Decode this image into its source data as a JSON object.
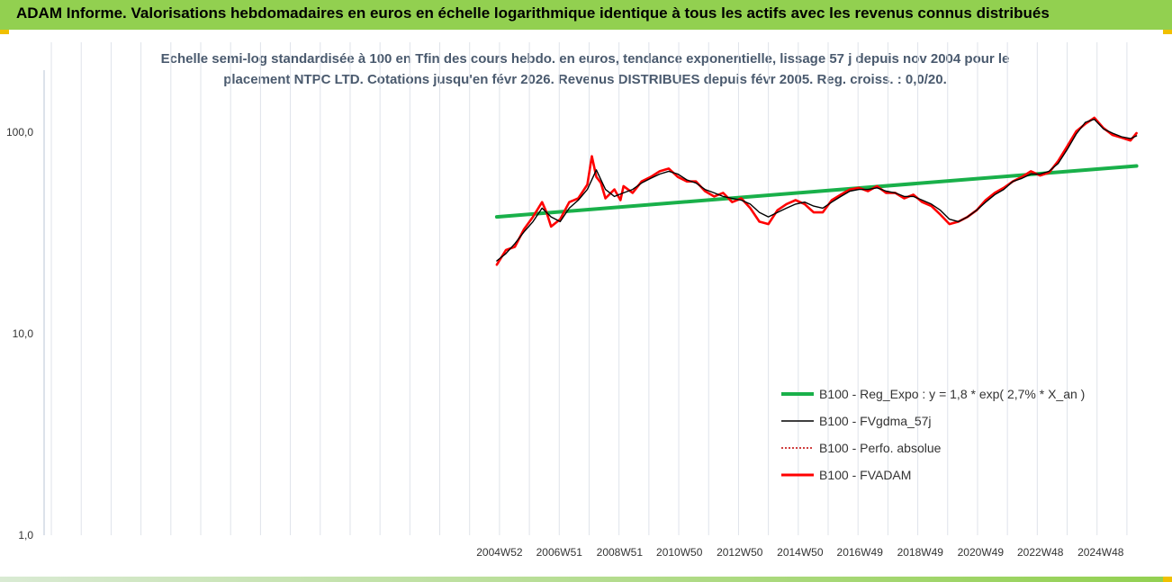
{
  "banner": {
    "title": "ADAM Informe. Valorisations hebdomadaires en euros en échelle logarithmique identique à tous les actifs avec les revenus connus distribués"
  },
  "colors": {
    "banner": "#92d050",
    "accent": "#f0c000",
    "series_reg": "#19b04a",
    "series_fvgdma": "#000000",
    "series_perfo": "#c00000",
    "series_fvadam": "#ff0000",
    "grid": "#dfe3ea"
  },
  "chart_data": {
    "type": "line",
    "title_lines": [
      "Echelle semi-log standardisée à 100 en Tfin des cours hebdo. en euros, tendance exponentielle, lissage 57 j depuis nov 2004 pour le",
      "placement NTPC LTD. Cotations jusqu'en févr 2026. Revenus DISTRIBUES depuis févr 2005. Reg. croiss. : 0,0/20."
    ],
    "y_scale": "log",
    "ylim": [
      1,
      200
    ],
    "y_ticks": [
      {
        "value": 1,
        "label": "1,0"
      },
      {
        "value": 10,
        "label": "10,0"
      },
      {
        "value": 100,
        "label": "100,0"
      }
    ],
    "xlim": [
      1989.9,
      2026.2
    ],
    "x_ticks": [
      {
        "value": 2004.99,
        "label": "2004W52"
      },
      {
        "value": 2006.97,
        "label": "2006W51"
      },
      {
        "value": 2008.97,
        "label": "2008W51"
      },
      {
        "value": 2010.95,
        "label": "2010W50"
      },
      {
        "value": 2012.95,
        "label": "2012W50"
      },
      {
        "value": 2014.95,
        "label": "2014W50"
      },
      {
        "value": 2016.93,
        "label": "2016W49"
      },
      {
        "value": 2018.93,
        "label": "2018W49"
      },
      {
        "value": 2020.93,
        "label": "2020W49"
      },
      {
        "value": 2022.91,
        "label": "2022W48"
      },
      {
        "value": 2024.91,
        "label": "2024W48"
      }
    ],
    "grid": "vertical",
    "legend_position": "bottom-right",
    "series": [
      {
        "name": "B100 - Reg_Expo : y = 1,8 * exp( 2,7% *  X_an )",
        "key": "reg",
        "x": [
          2004.9,
          2026.1
        ],
        "y": [
          38,
          68
        ]
      },
      {
        "name": "B100 - FVgdma_57j",
        "key": "fvgdma",
        "x": [
          2004.9,
          2005.2,
          2005.5,
          2005.8,
          2006.1,
          2006.4,
          2006.7,
          2007.0,
          2007.3,
          2007.6,
          2007.9,
          2008.2,
          2008.5,
          2008.8,
          2009.1,
          2009.4,
          2009.7,
          2010.0,
          2010.3,
          2010.6,
          2010.9,
          2011.2,
          2011.5,
          2011.8,
          2012.1,
          2012.4,
          2012.7,
          2013.0,
          2013.3,
          2013.6,
          2013.9,
          2014.2,
          2014.5,
          2014.8,
          2015.1,
          2015.4,
          2015.7,
          2016.0,
          2016.3,
          2016.6,
          2016.9,
          2017.2,
          2017.5,
          2017.8,
          2018.1,
          2018.4,
          2018.7,
          2019.0,
          2019.3,
          2019.6,
          2019.9,
          2020.2,
          2020.5,
          2020.8,
          2021.1,
          2021.4,
          2021.7,
          2022.0,
          2022.3,
          2022.6,
          2022.9,
          2023.2,
          2023.5,
          2023.8,
          2024.1,
          2024.4,
          2024.7,
          2025.0,
          2025.3,
          2025.6,
          2025.9,
          2026.1
        ],
        "y": [
          23,
          25,
          28,
          32,
          36,
          42,
          38,
          36,
          42,
          46,
          52,
          65,
          52,
          48,
          50,
          52,
          56,
          59,
          62,
          64,
          62,
          58,
          56,
          52,
          50,
          48,
          47,
          46,
          44,
          40,
          38,
          40,
          42,
          44,
          45,
          43,
          42,
          45,
          48,
          51,
          52,
          52,
          53,
          51,
          50,
          48,
          48,
          46,
          44,
          41,
          37,
          36,
          38,
          41,
          45,
          49,
          52,
          57,
          59,
          62,
          62,
          64,
          70,
          82,
          98,
          112,
          116,
          104,
          99,
          95,
          93,
          96
        ]
      },
      {
        "name": "B100 - Perfo. absolue",
        "key": "perfo",
        "x": [],
        "y": []
      },
      {
        "name": "B100 - FVADAM",
        "key": "fvadam",
        "x": [
          2004.9,
          2005.2,
          2005.5,
          2005.8,
          2006.1,
          2006.4,
          2006.55,
          2006.7,
          2007.0,
          2007.3,
          2007.6,
          2007.9,
          2008.05,
          2008.2,
          2008.35,
          2008.5,
          2008.8,
          2009.0,
          2009.1,
          2009.4,
          2009.7,
          2010.0,
          2010.3,
          2010.6,
          2010.9,
          2011.2,
          2011.5,
          2011.8,
          2012.1,
          2012.4,
          2012.7,
          2013.0,
          2013.3,
          2013.6,
          2013.9,
          2014.2,
          2014.5,
          2014.8,
          2015.1,
          2015.4,
          2015.7,
          2016.0,
          2016.3,
          2016.6,
          2016.9,
          2017.2,
          2017.5,
          2017.8,
          2018.1,
          2018.4,
          2018.7,
          2019.0,
          2019.3,
          2019.6,
          2019.9,
          2020.2,
          2020.5,
          2020.8,
          2021.1,
          2021.4,
          2021.7,
          2022.0,
          2022.3,
          2022.6,
          2022.9,
          2023.2,
          2023.5,
          2023.8,
          2024.1,
          2024.4,
          2024.7,
          2025.0,
          2025.3,
          2025.6,
          2025.9,
          2026.1
        ],
        "y": [
          22,
          26,
          27,
          33,
          38,
          45,
          40,
          34,
          37,
          45,
          47,
          55,
          76,
          60,
          56,
          47,
          52,
          46,
          54,
          50,
          57,
          60,
          64,
          66,
          60,
          57,
          57,
          51,
          48,
          50,
          45,
          47,
          42,
          36,
          35,
          41,
          44,
          46,
          44,
          40,
          40,
          46,
          49,
          52,
          53,
          51,
          54,
          50,
          50,
          47,
          49,
          45,
          43,
          39,
          35,
          36,
          38,
          41,
          46,
          50,
          53,
          57,
          60,
          64,
          61,
          63,
          72,
          85,
          101,
          110,
          118,
          105,
          97,
          94,
          91,
          99
        ]
      }
    ]
  }
}
